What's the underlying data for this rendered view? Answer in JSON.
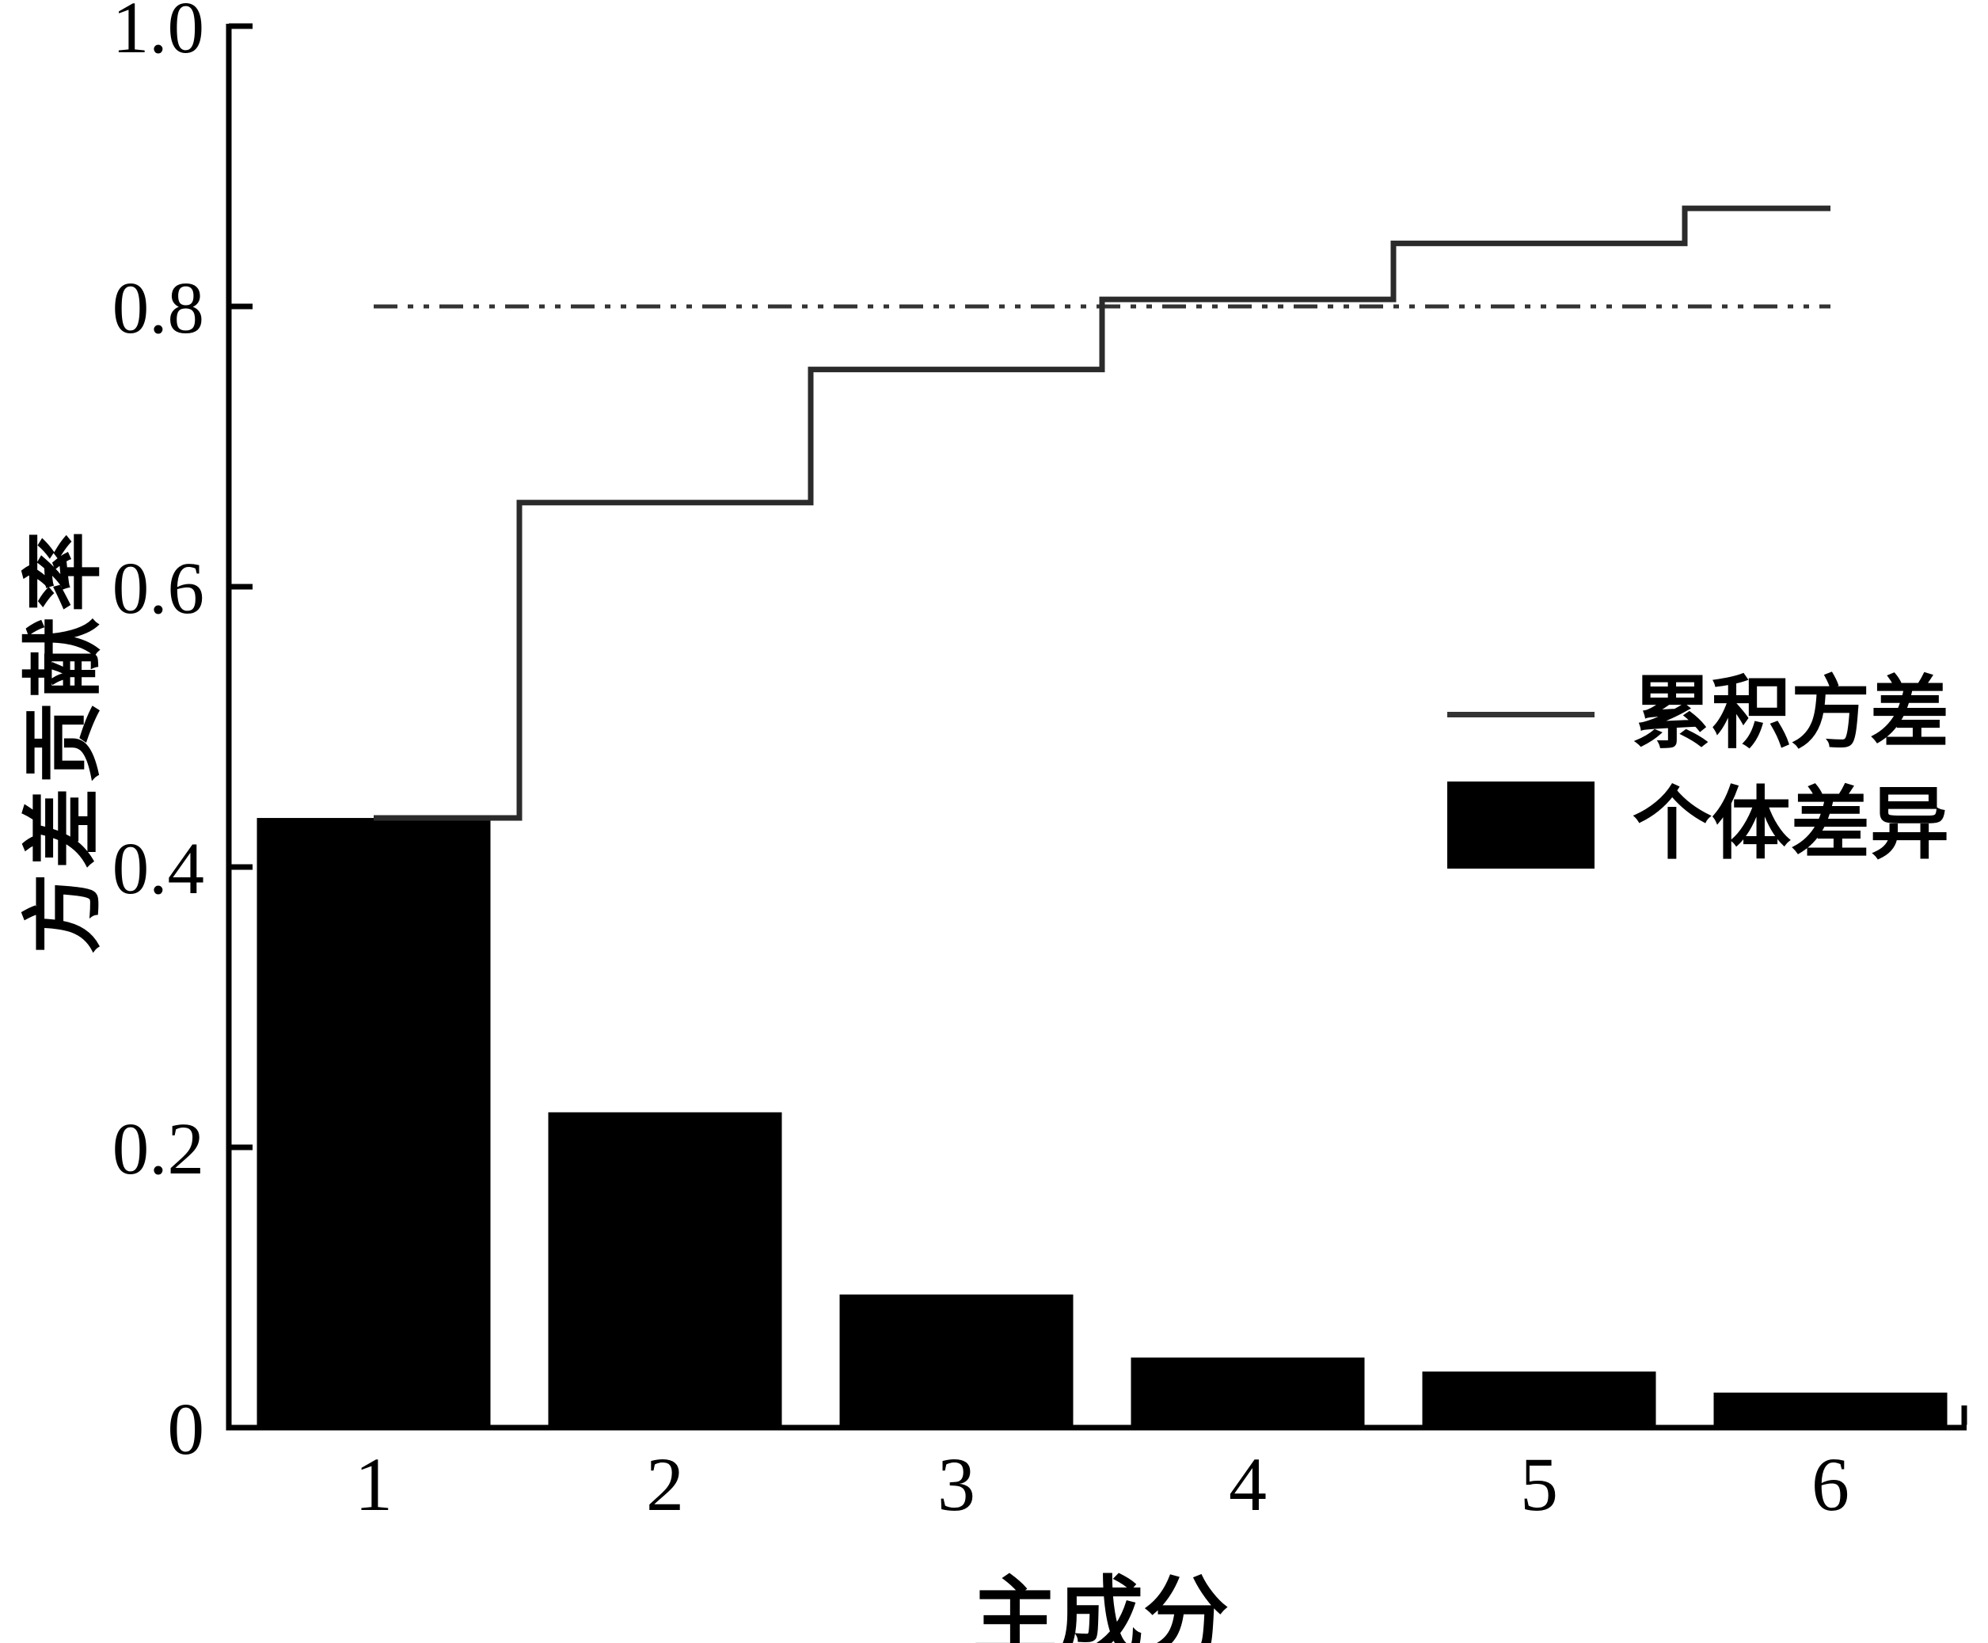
{
  "figure": {
    "background": "#ffffff",
    "bar_color": "#000000",
    "step_line_color": "#2b2b2b",
    "threshold_line_color": "#333333",
    "text_color": "#000000"
  },
  "chart_data": {
    "type": "combo",
    "categories": [
      "1",
      "2",
      "3",
      "4",
      "5",
      "6"
    ],
    "series": [
      {
        "name": "个体差异",
        "type": "bar",
        "values": [
          0.435,
          0.225,
          0.095,
          0.05,
          0.04,
          0.025
        ]
      },
      {
        "name": "累积方差",
        "type": "step-line",
        "where": "mid",
        "values": [
          0.435,
          0.66,
          0.755,
          0.805,
          0.845,
          0.87
        ]
      }
    ],
    "threshold_line": {
      "value": 0.8,
      "style": "dash-dot-dot"
    },
    "title": "",
    "xlabel": "主成分",
    "ylabel": "方差贡献率",
    "xlim": [
      0.5,
      6.5
    ],
    "ylim": [
      0,
      1.0
    ],
    "bar_width": 0.8,
    "yticks": [
      0,
      0.2,
      0.4,
      0.6,
      0.8,
      1.0
    ],
    "ytick_labels": [
      "0",
      "0.2",
      "0.4",
      "0.6",
      "0.8",
      "1.0"
    ],
    "grid": "off",
    "legend_position": "inside-center-right"
  },
  "axes": {
    "x_title": "主成分",
    "y_title": "方差贡献率",
    "x_tick_labels": [
      "1",
      "2",
      "3",
      "4",
      "5",
      "6"
    ]
  },
  "legend": {
    "cumulative_label": "累积方差",
    "individual_label": "个体差异"
  }
}
